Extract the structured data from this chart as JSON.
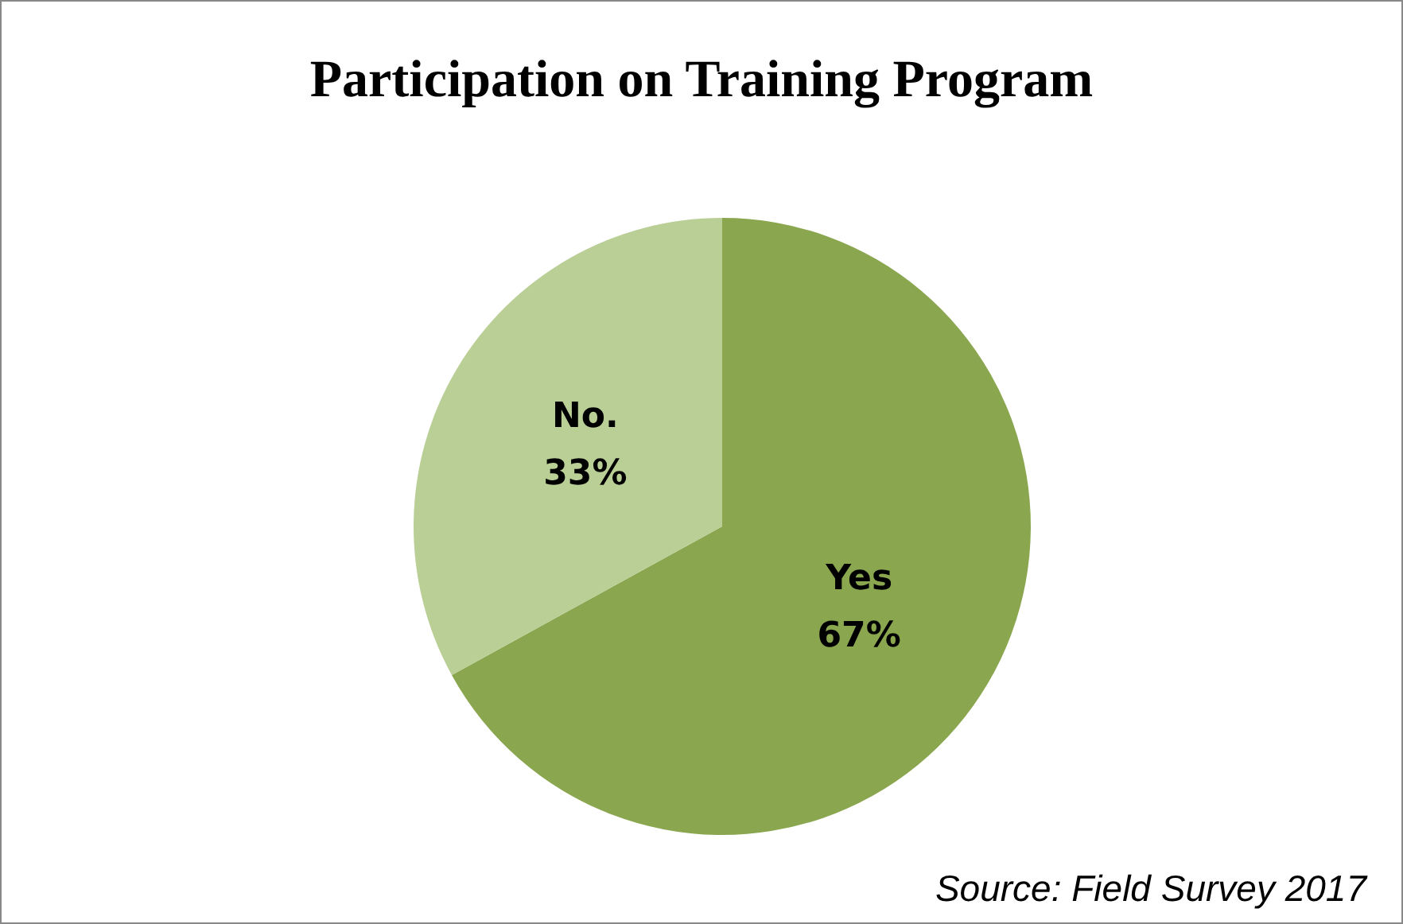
{
  "chart_data": {
    "type": "pie",
    "title": "Participation on Training Program",
    "categories": [
      "Yes",
      "No."
    ],
    "values": [
      67,
      33
    ],
    "colors": [
      "#8aa64f",
      "#bacf96"
    ],
    "value_labels": [
      "67%",
      "33%"
    ],
    "annotations": [
      "Source: Field Survey 2017"
    ]
  }
}
